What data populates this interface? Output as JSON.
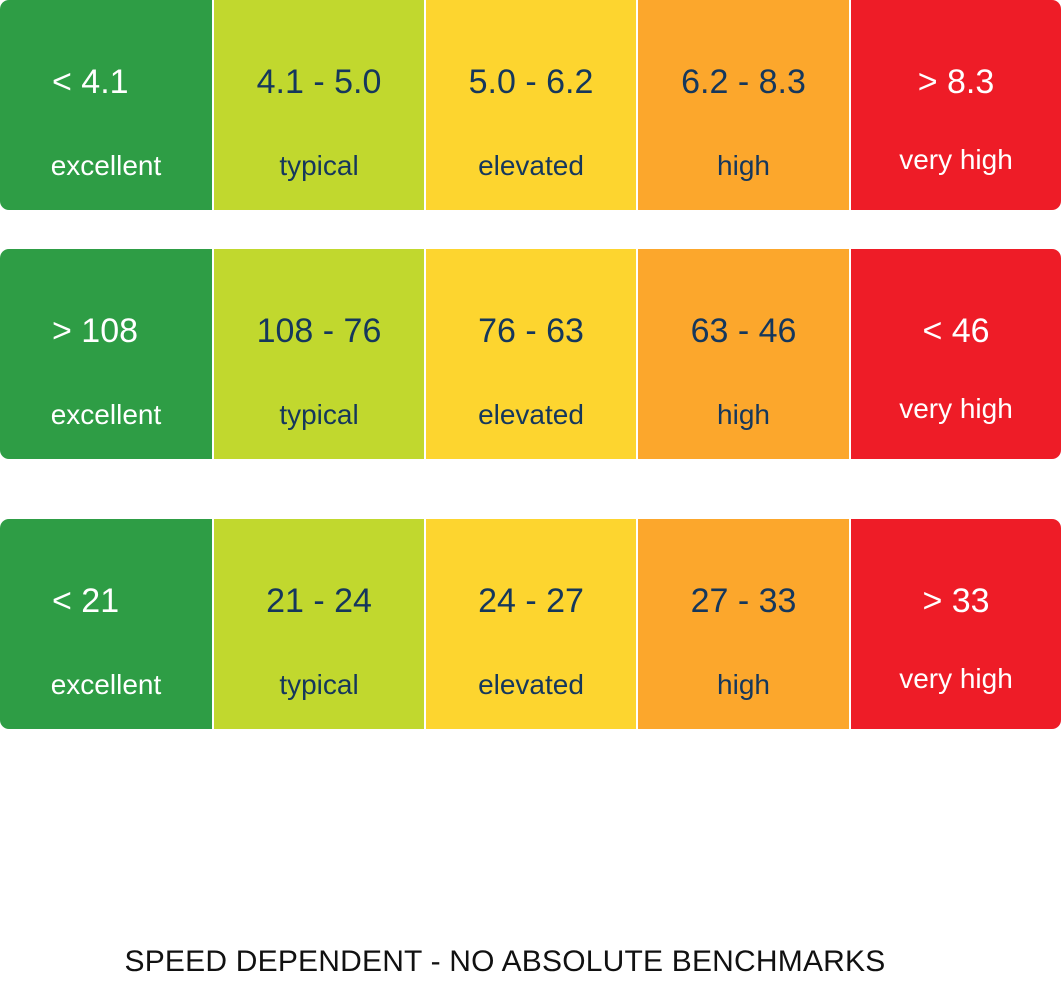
{
  "colors": {
    "excellent": "#2e9d45",
    "typical": "#c1d82e",
    "elevated": "#fdd52f",
    "high": "#fca72c",
    "very_high": "#ee1c27",
    "dark_text": "#15375c",
    "light_text": "#ffffff"
  },
  "rows": [
    {
      "cells": [
        {
          "range": "< 4.1",
          "label": "excellent"
        },
        {
          "range": "4.1 - 5.0",
          "label": "typical"
        },
        {
          "range": "5.0 - 6.2",
          "label": "elevated"
        },
        {
          "range": "6.2 - 8.3",
          "label": "high"
        },
        {
          "range": "> 8.3",
          "label": "very high"
        }
      ]
    },
    {
      "cells": [
        {
          "range": "> 108",
          "label": "excellent"
        },
        {
          "range": "108 - 76",
          "label": "typical"
        },
        {
          "range": "76 - 63",
          "label": "elevated"
        },
        {
          "range": "63 - 46",
          "label": "high"
        },
        {
          "range": "< 46",
          "label": "very high"
        }
      ]
    },
    {
      "cells": [
        {
          "range": "< 21",
          "label": "excellent"
        },
        {
          "range": "21 - 24",
          "label": "typical"
        },
        {
          "range": "24 - 27",
          "label": "elevated"
        },
        {
          "range": "27 - 33",
          "label": "high"
        },
        {
          "range": "> 33",
          "label": "very high"
        }
      ]
    }
  ],
  "footer": {
    "note": "SPEED DEPENDENT - NO ABSOLUTE BENCHMARKS"
  }
}
